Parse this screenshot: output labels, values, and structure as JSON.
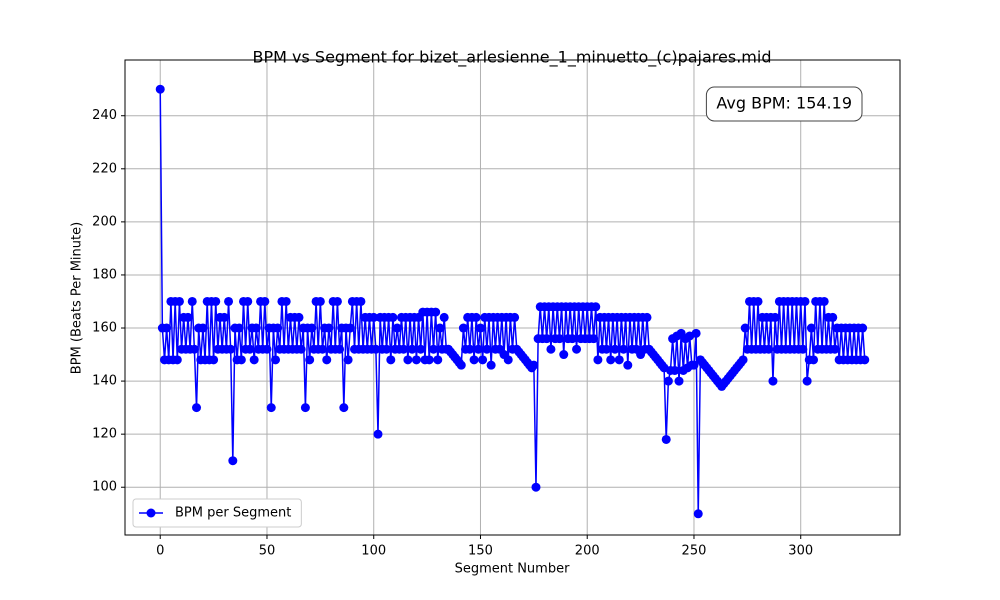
{
  "chart_data": {
    "type": "line",
    "title": "BPM vs Segment for bizet_arlesienne_1_minuetto_(c)pajares.mid",
    "x_label": "Segment Number",
    "y_label": "BPM (Beats Per Minute)",
    "annotation": "Avg BPM: 154.19",
    "legend": "lower left",
    "grid": true,
    "xlim": [
      -16.5,
      346.5
    ],
    "ylim": [
      82,
      261
    ],
    "xticks": [
      0,
      50,
      100,
      150,
      200,
      250,
      300
    ],
    "yticks": [
      100,
      120,
      140,
      160,
      180,
      200,
      220,
      240
    ],
    "x": [
      0,
      1,
      2,
      3,
      4,
      5,
      6,
      7,
      8,
      9,
      10,
      11,
      12,
      13,
      14,
      15,
      16,
      17,
      18,
      19,
      20,
      21,
      22,
      23,
      24,
      25,
      26,
      27,
      28,
      29,
      30,
      31,
      32,
      33,
      34,
      35,
      36,
      37,
      38,
      39,
      40,
      41,
      42,
      43,
      44,
      45,
      46,
      47,
      48,
      49,
      50,
      51,
      52,
      53,
      54,
      55,
      56,
      57,
      58,
      59,
      60,
      61,
      62,
      63,
      64,
      65,
      66,
      67,
      68,
      69,
      70,
      71,
      72,
      73,
      74,
      75,
      76,
      77,
      78,
      79,
      80,
      81,
      82,
      83,
      84,
      85,
      86,
      87,
      88,
      89,
      90,
      91,
      92,
      93,
      94,
      95,
      96,
      97,
      98,
      99,
      100,
      101,
      102,
      103,
      104,
      105,
      106,
      107,
      108,
      109,
      110,
      111,
      112,
      113,
      114,
      115,
      116,
      117,
      118,
      119,
      120,
      121,
      122,
      123,
      124,
      125,
      126,
      127,
      128,
      129,
      130,
      131,
      132,
      133,
      134,
      135,
      136,
      137,
      138,
      139,
      140,
      141,
      142,
      143,
      144,
      145,
      146,
      147,
      148,
      149,
      150,
      151,
      152,
      153,
      154,
      155,
      156,
      157,
      158,
      159,
      160,
      161,
      162,
      163,
      164,
      165,
      166,
      167,
      168,
      169,
      170,
      171,
      172,
      173,
      174,
      175,
      176,
      177,
      178,
      179,
      180,
      181,
      182,
      183,
      184,
      185,
      186,
      187,
      188,
      189,
      190,
      191,
      192,
      193,
      194,
      195,
      196,
      197,
      198,
      199,
      200,
      201,
      202,
      203,
      204,
      205,
      206,
      207,
      208,
      209,
      210,
      211,
      212,
      213,
      214,
      215,
      216,
      217,
      218,
      219,
      220,
      221,
      222,
      223,
      224,
      225,
      226,
      227,
      228,
      229,
      230,
      231,
      232,
      233,
      234,
      235,
      236,
      237,
      238,
      239,
      240,
      241,
      242,
      243,
      244,
      245,
      246,
      247,
      248,
      249,
      250,
      251,
      252,
      253,
      254,
      255,
      256,
      257,
      258,
      259,
      260,
      261,
      262,
      263,
      264,
      265,
      266,
      267,
      268,
      269,
      270,
      271,
      272,
      273,
      274,
      275,
      276,
      277,
      278,
      279,
      280,
      281,
      282,
      283,
      284,
      285,
      286,
      287,
      288,
      289,
      290,
      291,
      292,
      293,
      294,
      295,
      296,
      297,
      298,
      299,
      300,
      301,
      302,
      303,
      304,
      305,
      306,
      307,
      308,
      309,
      310,
      311,
      312,
      313,
      314,
      315,
      316,
      317,
      318,
      319,
      320,
      321,
      322,
      323,
      324,
      325,
      326,
      327,
      328,
      329,
      330
    ],
    "series": [
      {
        "name": "BPM per Segment",
        "color": "#0000ff",
        "values": [
          250,
          160,
          148,
          160,
          148,
          170,
          148,
          170,
          148,
          170,
          152,
          164,
          152,
          164,
          152,
          170,
          152,
          130,
          160,
          148,
          160,
          148,
          170,
          148,
          170,
          148,
          170,
          152,
          164,
          152,
          164,
          152,
          170,
          152,
          110,
          160,
          148,
          160,
          148,
          170,
          152,
          170,
          152,
          160,
          148,
          160,
          152,
          170,
          152,
          170,
          152,
          160,
          130,
          160,
          148,
          160,
          152,
          170,
          152,
          170,
          152,
          164,
          152,
          164,
          152,
          164,
          152,
          160,
          130,
          160,
          148,
          160,
          152,
          170,
          152,
          170,
          152,
          160,
          148,
          160,
          152,
          170,
          152,
          170,
          152,
          160,
          130,
          160,
          148,
          160,
          170,
          152,
          170,
          152,
          170,
          152,
          164,
          152,
          164,
          152,
          164,
          152,
          120,
          164,
          152,
          164,
          152,
          164,
          148,
          164,
          152,
          160,
          152,
          164,
          152,
          164,
          148,
          164,
          152,
          164,
          148,
          164,
          152,
          166,
          148,
          166,
          148,
          166,
          152,
          166,
          148,
          160,
          152,
          164,
          152,
          152,
          151,
          150,
          149,
          148,
          147,
          146,
          160,
          152,
          164,
          152,
          164,
          148,
          164,
          152,
          160,
          148,
          164,
          152,
          164,
          146,
          164,
          152,
          164,
          152,
          164,
          150,
          164,
          148,
          164,
          152,
          164,
          152,
          151,
          150,
          149,
          148,
          147,
          146,
          145,
          146,
          100,
          156,
          168,
          156,
          168,
          156,
          168,
          152,
          168,
          156,
          168,
          156,
          168,
          150,
          168,
          156,
          168,
          156,
          168,
          152,
          168,
          156,
          168,
          156,
          168,
          156,
          168,
          156,
          168,
          148,
          164,
          152,
          164,
          152,
          164,
          148,
          164,
          152,
          164,
          148,
          164,
          152,
          164,
          146,
          164,
          152,
          164,
          152,
          164,
          150,
          164,
          152,
          164,
          152,
          151,
          150,
          149,
          148,
          147,
          146,
          145,
          118,
          140,
          144,
          156,
          144,
          157,
          140,
          158,
          144,
          156,
          145,
          157,
          146,
          146,
          158,
          90,
          148,
          147,
          146,
          145,
          144,
          143,
          142,
          141,
          140,
          139,
          138,
          139,
          140,
          141,
          142,
          143,
          144,
          145,
          146,
          147,
          148,
          160,
          152,
          170,
          152,
          170,
          152,
          170,
          152,
          164,
          152,
          164,
          152,
          164,
          140,
          164,
          152,
          170,
          152,
          170,
          152,
          170,
          152,
          170,
          152,
          170,
          152,
          170,
          152,
          170,
          140,
          148,
          160,
          148,
          170,
          152,
          170,
          152,
          170,
          152,
          164,
          152,
          164,
          152,
          160,
          148,
          160,
          148,
          160,
          148,
          160,
          148,
          160,
          148,
          160,
          148,
          160,
          148
        ]
      }
    ]
  }
}
